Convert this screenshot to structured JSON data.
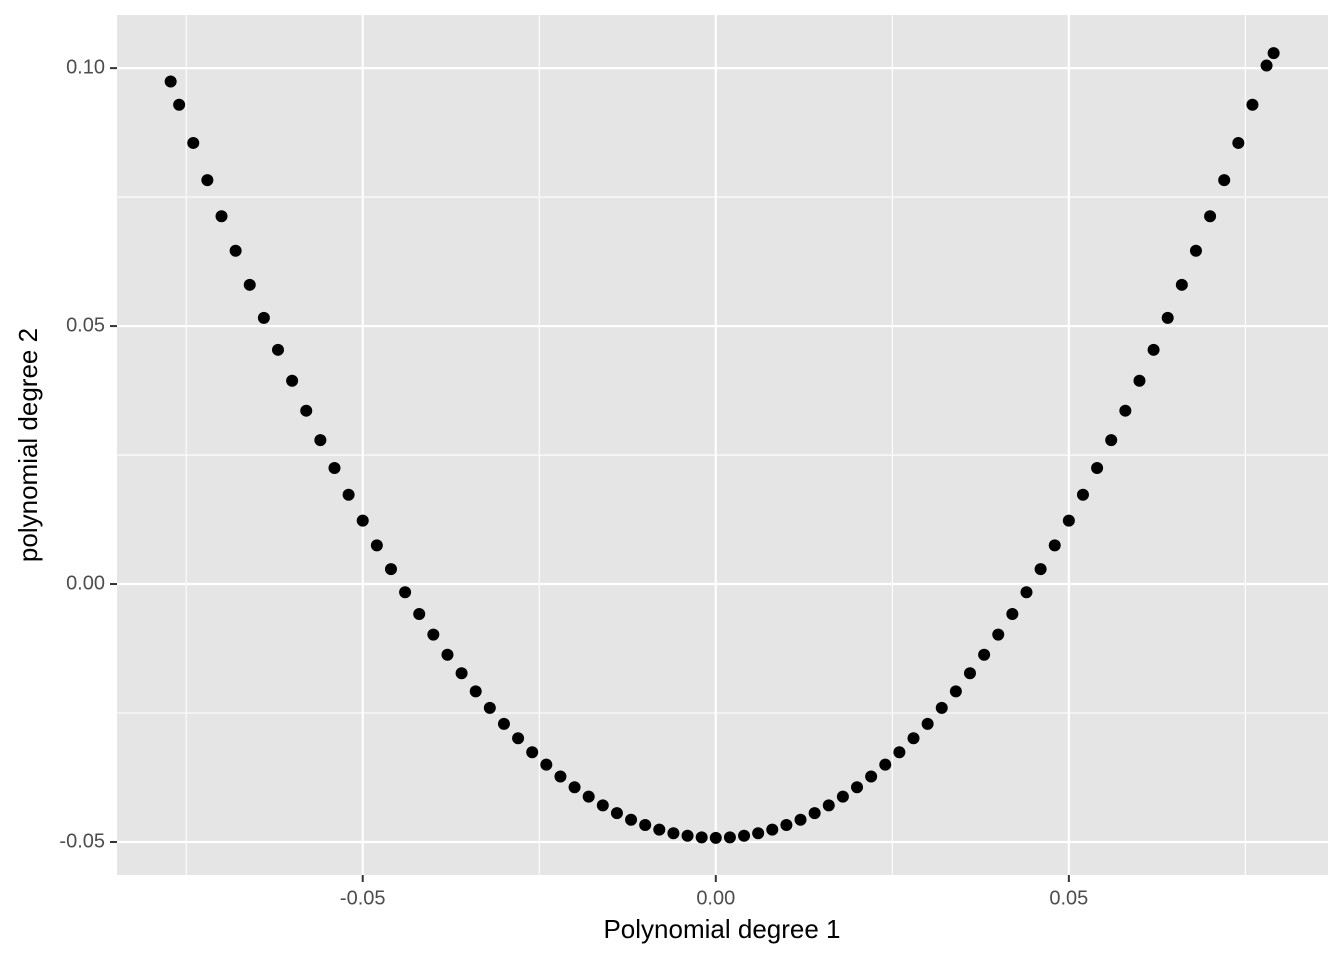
{
  "chart_data": {
    "type": "scatter",
    "xlabel": "Polynomial degree 1",
    "ylabel": "polynomial degree 2",
    "x": [
      -0.0772,
      -0.076,
      -0.074,
      -0.072,
      -0.07,
      -0.068,
      -0.066,
      -0.064,
      -0.062,
      -0.06,
      -0.058,
      -0.056,
      -0.054,
      -0.052,
      -0.05,
      -0.048,
      -0.046,
      -0.044,
      -0.042,
      -0.04,
      -0.038,
      -0.036,
      -0.034,
      -0.032,
      -0.03,
      -0.028,
      -0.026,
      -0.024,
      -0.022,
      -0.02,
      -0.018,
      -0.016,
      -0.014,
      -0.012,
      -0.01,
      -0.008,
      -0.006,
      -0.004,
      -0.002,
      0,
      0.002,
      0.004,
      0.006,
      0.008,
      0.01,
      0.012,
      0.014,
      0.016,
      0.018,
      0.02,
      0.022,
      0.024,
      0.026,
      0.028,
      0.03,
      0.032,
      0.034,
      0.036,
      0.038,
      0.04,
      0.042,
      0.044,
      0.046,
      0.048,
      0.05,
      0.052,
      0.054,
      0.056,
      0.058,
      0.06,
      0.062,
      0.064,
      0.066,
      0.068,
      0.07,
      0.072,
      0.074,
      0.076,
      0.078,
      0.079
    ],
    "values": [
      0.0974,
      0.0929,
      0.0855,
      0.0783,
      0.0713,
      0.0646,
      0.058,
      0.0516,
      0.0454,
      0.0394,
      0.0336,
      0.0279,
      0.0225,
      0.0173,
      0.0123,
      0.0075,
      0.0029,
      -0.0016,
      -0.0058,
      -0.0098,
      -0.0137,
      -0.0173,
      -0.0208,
      -0.024,
      -0.0271,
      -0.0299,
      -0.0326,
      -0.035,
      -0.0373,
      -0.0394,
      -0.0412,
      -0.0429,
      -0.0444,
      -0.0457,
      -0.0467,
      -0.0476,
      -0.0483,
      -0.0488,
      -0.0491,
      -0.0492,
      -0.0491,
      -0.0488,
      -0.0483,
      -0.0476,
      -0.0467,
      -0.0457,
      -0.0444,
      -0.0429,
      -0.0412,
      -0.0394,
      -0.0373,
      -0.035,
      -0.0326,
      -0.0299,
      -0.0271,
      -0.024,
      -0.0208,
      -0.0173,
      -0.0137,
      -0.0098,
      -0.0058,
      -0.0016,
      0.0029,
      0.0075,
      0.0123,
      0.0173,
      0.0225,
      0.0279,
      0.0336,
      0.0394,
      0.0454,
      0.0516,
      0.058,
      0.0646,
      0.0713,
      0.0783,
      0.0855,
      0.0929,
      0.1005,
      0.1029
    ],
    "color": "#000000",
    "xlim": [
      -0.0848,
      0.0867
    ],
    "ylim": [
      -0.0564,
      0.1103
    ],
    "xticks": [
      -0.05,
      {
        "value": 0,
        "label": "0.00"
      },
      0.05
    ],
    "yticks": [
      -0.05,
      {
        "value": 0,
        "label": "0.00"
      },
      0.05,
      {
        "value": 0.1,
        "label": "0.10"
      }
    ],
    "x_minor_grid": [
      -0.075,
      -0.025,
      0.025,
      0.075
    ],
    "y_minor_grid": [
      -0.025,
      0.025,
      0.075
    ],
    "grid": true
  }
}
